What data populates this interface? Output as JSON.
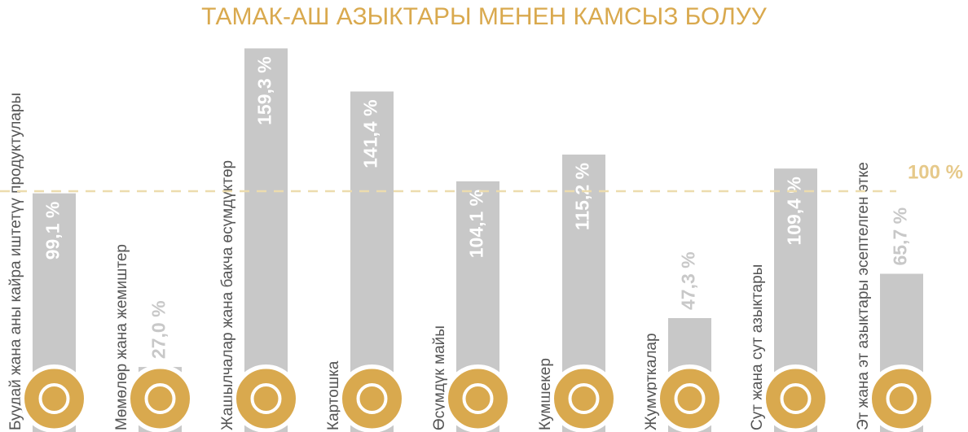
{
  "chart_data": {
    "type": "bar",
    "title": "ТАМАК-АШ АЗЫКТАРЫ МЕНЕН КАМСЫЗ БОЛУУ",
    "categories": [
      "Буудай жана аны кайра иштетүү продуктулары",
      "Мөмөлөр жана жемиштер",
      "Жашылчалар жана бакча өсүмдүктөр",
      "Картошка",
      "Өсүмдүк майы",
      "Кумшекер",
      "Жумурткалар",
      "Сут жана сут азыктары",
      "Эт жана эт азыктары эсептелген этке"
    ],
    "values": [
      99.1,
      27.0,
      159.3,
      141.4,
      104.1,
      115.2,
      47.3,
      109.4,
      65.7
    ],
    "value_labels": [
      "99,1 %",
      "27,0 %",
      "159,3 %",
      "141,4 %",
      "104,1 %",
      "115,2 %",
      "47,3 %",
      "109,4 %",
      "65,7 %"
    ],
    "color": "#c8c8c8",
    "reference": {
      "value": 100,
      "label": "100 %"
    }
  }
}
